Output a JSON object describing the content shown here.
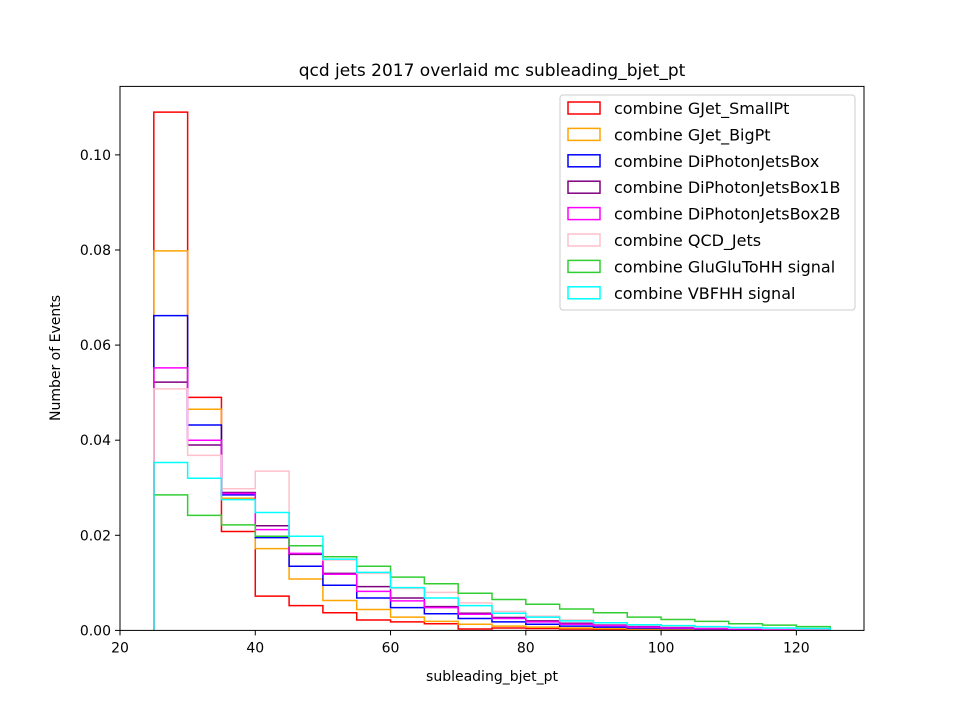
{
  "chart_data": {
    "type": "histogram-step",
    "title": "qcd jets 2017 overlaid mc subleading_bjet_pt",
    "xlabel": "subleading_bjet_pt",
    "ylabel": "Number of Events",
    "xlim": [
      20,
      130
    ],
    "ylim": [
      0,
      0.1144
    ],
    "x_ticks": [
      20,
      40,
      60,
      80,
      100,
      120
    ],
    "y_ticks": [
      0.0,
      0.02,
      0.04,
      0.06,
      0.08,
      0.1
    ],
    "x_tick_labels": [
      "20",
      "40",
      "60",
      "80",
      "100",
      "120"
    ],
    "y_tick_labels": [
      "0.00",
      "0.02",
      "0.04",
      "0.06",
      "0.08",
      "0.10"
    ],
    "grid": false,
    "legend_position": "top-right",
    "bin_edges": [
      25,
      30,
      35,
      40,
      45,
      50,
      55,
      60,
      65,
      70,
      75,
      80,
      85,
      90,
      95,
      100,
      105,
      110,
      115,
      120,
      125
    ],
    "series": [
      {
        "name": "combine GJet_SmallPt",
        "color": "#ff0000",
        "values": [
          0.109,
          0.049,
          0.0208,
          0.0072,
          0.0052,
          0.0037,
          0.0022,
          0.0018,
          0.0014,
          0.0003,
          0.0005,
          0.0004,
          0.0003,
          0.0002,
          0.0002,
          0.0001,
          0.0001,
          0.0001,
          0.0001,
          0.0001
        ]
      },
      {
        "name": "combine GJet_BigPt",
        "color": "#ffa500",
        "values": [
          0.0798,
          0.0465,
          0.0278,
          0.0172,
          0.0108,
          0.0063,
          0.0044,
          0.0028,
          0.0019,
          0.0013,
          0.0009,
          0.0007,
          0.0005,
          0.0004,
          0.0003,
          0.0002,
          0.0002,
          0.0001,
          0.0001,
          0.0001
        ]
      },
      {
        "name": "combine DiPhotonJetsBox",
        "color": "#0000ff",
        "values": [
          0.0662,
          0.0432,
          0.0285,
          0.0195,
          0.0135,
          0.0095,
          0.0068,
          0.0048,
          0.0035,
          0.0025,
          0.0018,
          0.0013,
          0.0009,
          0.0007,
          0.0005,
          0.0004,
          0.0003,
          0.0002,
          0.0002,
          0.0001
        ]
      },
      {
        "name": "combine DiPhotonJetsBox1B",
        "color": "#800080",
        "values": [
          0.0522,
          0.039,
          0.029,
          0.022,
          0.016,
          0.012,
          0.0092,
          0.0068,
          0.005,
          0.0036,
          0.0027,
          0.002,
          0.0015,
          0.0011,
          0.0008,
          0.0006,
          0.0004,
          0.0003,
          0.0002,
          0.0002
        ]
      },
      {
        "name": "combine DiPhotonJetsBox2B",
        "color": "#ff00ff",
        "values": [
          0.0552,
          0.04,
          0.0288,
          0.0212,
          0.0162,
          0.0118,
          0.0082,
          0.0062,
          0.0048,
          0.0034,
          0.0025,
          0.0018,
          0.0013,
          0.001,
          0.0007,
          0.0005,
          0.0004,
          0.0003,
          0.0002,
          0.0002
        ]
      },
      {
        "name": "combine QCD_Jets",
        "color": "#ffc0cb",
        "values": [
          0.0508,
          0.0368,
          0.0298,
          0.0335,
          0.0178,
          0.0148,
          0.012,
          0.0088,
          0.008,
          0.0058,
          0.004,
          0.003,
          0.0022,
          0.0016,
          0.0012,
          0.0009,
          0.0007,
          0.0005,
          0.0004,
          0.0003
        ]
      },
      {
        "name": "combine GluGluToHH signal",
        "color": "#32cd32",
        "values": [
          0.0285,
          0.0242,
          0.0222,
          0.0198,
          0.0178,
          0.0155,
          0.0135,
          0.0112,
          0.0098,
          0.0078,
          0.0065,
          0.0055,
          0.0045,
          0.0037,
          0.0028,
          0.0023,
          0.0019,
          0.0014,
          0.0011,
          0.0008
        ]
      },
      {
        "name": "combine VBFHH signal",
        "color": "#00ffff",
        "values": [
          0.0353,
          0.032,
          0.0275,
          0.0248,
          0.0198,
          0.015,
          0.0122,
          0.009,
          0.0068,
          0.0052,
          0.0036,
          0.0028,
          0.002,
          0.0016,
          0.0012,
          0.001,
          0.0008,
          0.0006,
          0.0005,
          0.0004
        ]
      }
    ]
  }
}
